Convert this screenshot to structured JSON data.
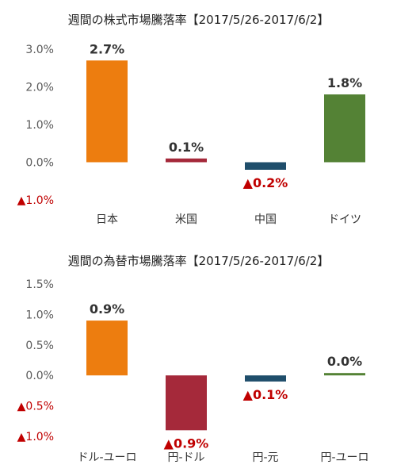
{
  "chart_data": [
    {
      "type": "bar",
      "title": "週間の株式市場騰落率【2017/5/26-2017/6/2】",
      "xlabel": "",
      "ylabel": "",
      "categories": [
        "日本",
        "米国",
        "中国",
        "ドイツ"
      ],
      "values": [
        2.7,
        0.1,
        -0.2,
        1.8
      ],
      "data_labels": [
        "2.7%",
        "0.1%",
        "▲0.2%",
        "1.8%"
      ],
      "colors": [
        "#ED7D0F",
        "#A5293A",
        "#1F4E6B",
        "#548235"
      ],
      "ylim": [
        -1.0,
        3.0
      ],
      "yticks": [
        3.0,
        2.0,
        1.0,
        0.0,
        -1.0
      ],
      "ytick_labels": [
        "3.0%",
        "2.0%",
        "1.0%",
        "0.0%",
        "▲1.0%"
      ],
      "grid": false,
      "legend": "none"
    },
    {
      "type": "bar",
      "title": "週間の為替市場騰落率【2017/5/26-2017/6/2】",
      "xlabel": "",
      "ylabel": "",
      "categories": [
        "ドル-ユーロ",
        "円-ドル",
        "円-元",
        "円-ユーロ"
      ],
      "values": [
        0.9,
        -0.9,
        -0.1,
        0.0
      ],
      "data_labels": [
        "0.9%",
        "▲0.9%",
        "▲0.1%",
        "0.0%"
      ],
      "colors": [
        "#ED7D0F",
        "#A5293A",
        "#1F4E6B",
        "#548235"
      ],
      "ylim": [
        -1.0,
        1.5
      ],
      "yticks": [
        1.5,
        1.0,
        0.5,
        0.0,
        -0.5,
        -1.0
      ],
      "ytick_labels": [
        "1.5%",
        "1.0%",
        "0.5%",
        "0.0%",
        "▲0.5%",
        "▲1.0%"
      ],
      "grid": false,
      "legend": "none"
    }
  ]
}
